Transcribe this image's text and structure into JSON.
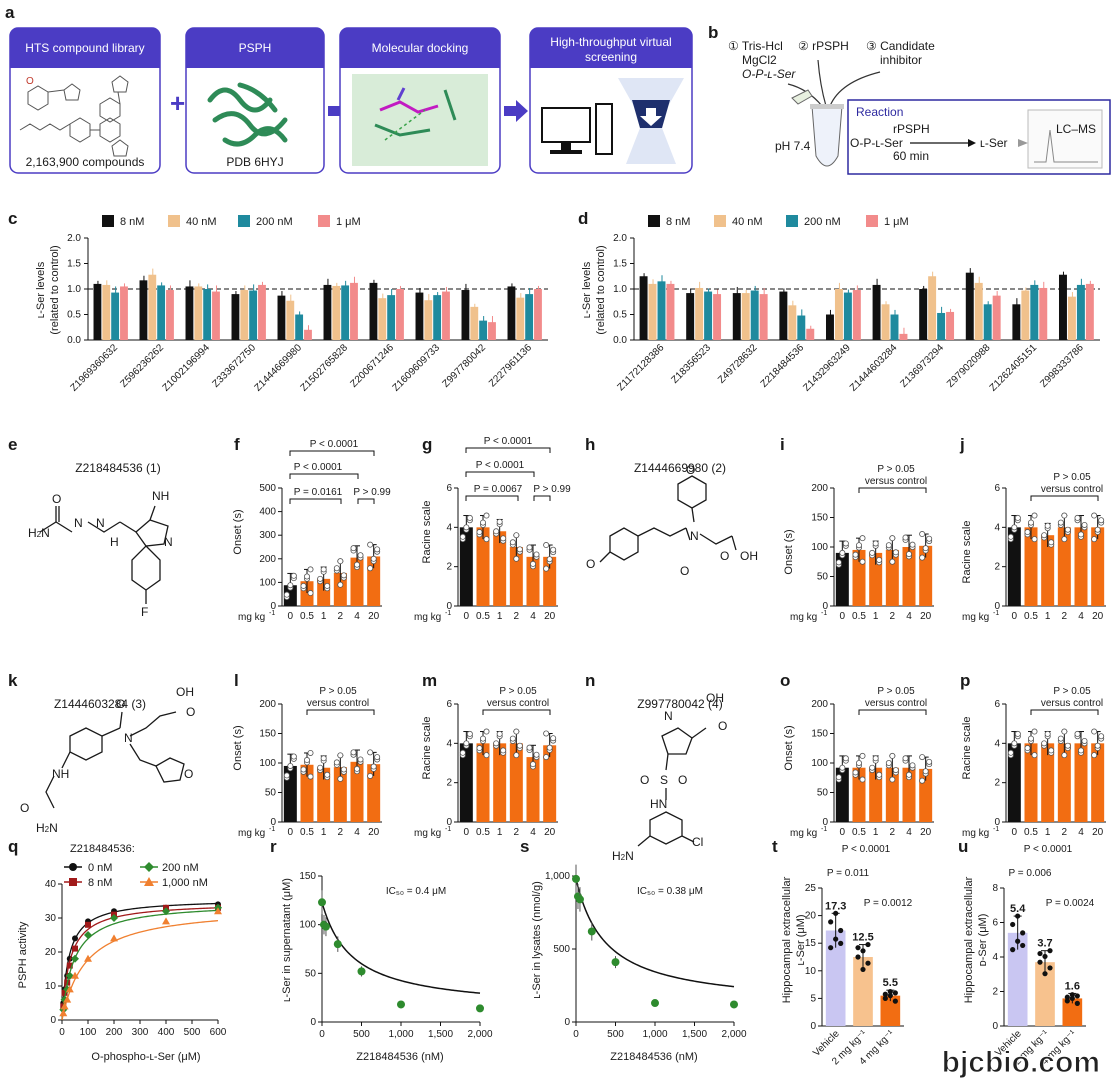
{
  "panel_letters": {
    "a": "a",
    "b": "b",
    "c": "c",
    "d": "d",
    "e": "e",
    "f": "f",
    "g": "g",
    "h": "h",
    "i": "i",
    "j": "j",
    "k": "k",
    "l": "l",
    "m": "m",
    "n": "n",
    "o": "o",
    "p": "p",
    "q": "q",
    "r": "r",
    "s": "s",
    "t": "t",
    "u": "u"
  },
  "panel_a": {
    "box1_title": "HTS compound library",
    "box1_caption": "2,163,900 compounds",
    "box2_title": "PSPH",
    "box2_caption": "PDB 6HYJ",
    "box3_title": "Molecular docking",
    "box4_title_1": "High-throughput virtual",
    "box4_title_2": "screening",
    "colors": {
      "header": "#4b3cc4",
      "arrow": "#4b3cc4",
      "protein": "#2e8b57"
    }
  },
  "panel_b": {
    "step1_1": "① Tris-Hcl",
    "step1_2": "MgCl2",
    "step1_3": "O-P-ʟ-Ser",
    "step2": "② rPSPH",
    "step3_1": "③ Candidate",
    "step3_2": "inhibitor",
    "ph": "pH 7.4",
    "reaction_title": "Reaction",
    "substrate": "O-P-ʟ-Ser",
    "enzyme": "rPSPH",
    "time": "60 min",
    "product": "ʟ-Ser",
    "lcms": "LC–MS"
  },
  "legend_cd": [
    "8 nM",
    "40 nM",
    "200 nM",
    "1 μM"
  ],
  "series_colors": [
    "#111111",
    "#f0c18c",
    "#1f8a9e",
    "#f28b8b"
  ],
  "ylabel_cd_1": "ʟ-Ser levels",
  "ylabel_cd_2": "(related to control)",
  "compound_labels": {
    "e": "Z218484536 (1)",
    "h": "Z1444669980 (2)",
    "k": "Z1444603284 (3)",
    "n": "Z997780042 (4)"
  },
  "axis_labels": {
    "onset": "Onset (s)",
    "racine": "Racine scale",
    "mgkg": "mg kg",
    "mgkg_sup": "-1",
    "psph": "PSPH activity",
    "ophospho": "O-phospho-ʟ-Ser (μM)",
    "ser_supernatant": "ʟ-Ser in supernatant (μM)",
    "ser_lysates": "ʟ-Ser in lysates (nmol/g)",
    "z218": "Z218484536 (nM)",
    "t_y1": "Hippocampal extracellular",
    "t_y2": "ʟ-Ser (μM)",
    "u_y1": "Hippocampal extracellular",
    "u_y2": "ᴅ-Ser (μM)"
  },
  "stats": {
    "f1": "P < 0.0001",
    "f2": "P < 0.0001",
    "f3": "P = 0.0161",
    "f4": "P > 0.99",
    "g1": "P < 0.0001",
    "g2": "P < 0.0001",
    "g3": "P = 0.0067",
    "g4": "P > 0.99",
    "ns1": "P > 0.05",
    "ns2": "versus control",
    "t1": "P < 0.0001",
    "t2": "P = 0.011",
    "t3": "P = 0.0012",
    "u1": "P < 0.0001",
    "u2": "P = 0.006",
    "u3": "P = 0.0024"
  },
  "ic50_r": "IC₅₀ = 0.4 μM",
  "ic50_s": "IC₅₀ = 0.38 μM",
  "q_legend": {
    "title": "Z218484536:",
    "s0": "0 nM",
    "s8": "8 nM",
    "s200": "200 nM",
    "s1000": "1,000 nM"
  },
  "watermark": "bjcbio.com",
  "chart_data": [
    {
      "id": "c",
      "type": "bar",
      "ylim": [
        0,
        2.0
      ],
      "yticks": [
        0,
        0.5,
        1.0,
        1.5,
        2.0
      ],
      "categories": [
        "Z1969360632",
        "Z596236262",
        "Z1002196994",
        "Z333672750",
        "Z1444669980",
        "Z1502765828",
        "Z200671246",
        "Z1609609733",
        "Z997780042",
        "Z227961136"
      ],
      "series": [
        {
          "name": "8 nM",
          "values": [
            1.1,
            1.17,
            1.05,
            0.9,
            0.87,
            1.08,
            1.12,
            0.93,
            0.98,
            1.05
          ]
        },
        {
          "name": "40 nM",
          "values": [
            1.08,
            1.28,
            1.05,
            0.98,
            0.77,
            1.06,
            0.82,
            0.78,
            0.65,
            0.83
          ]
        },
        {
          "name": "200 nM",
          "values": [
            0.93,
            1.07,
            1.0,
            0.97,
            0.5,
            1.07,
            0.88,
            0.88,
            0.38,
            0.9
          ]
        },
        {
          "name": "1 μM",
          "values": [
            1.05,
            0.98,
            0.95,
            1.08,
            0.2,
            1.12,
            1.0,
            0.95,
            0.35,
            1.0
          ]
        }
      ]
    },
    {
      "id": "d",
      "type": "bar",
      "ylim": [
        0,
        2.0
      ],
      "yticks": [
        0,
        0.5,
        1.0,
        1.5,
        2.0
      ],
      "categories": [
        "Z1172128386",
        "Z18356523",
        "Z49728632",
        "Z218484536",
        "Z1432963249",
        "Z1444603284",
        "Z136973294",
        "Z979020988",
        "Z1262405151",
        "Z998333786"
      ],
      "series": [
        {
          "name": "8 nM",
          "values": [
            1.25,
            0.92,
            0.92,
            0.95,
            0.5,
            1.08,
            1.0,
            1.32,
            0.7,
            1.28
          ]
        },
        {
          "name": "40 nM",
          "values": [
            1.1,
            1.02,
            0.92,
            0.68,
            1.0,
            0.7,
            1.25,
            1.12,
            0.97,
            0.85
          ]
        },
        {
          "name": "200 nM",
          "values": [
            1.15,
            0.95,
            0.97,
            0.48,
            0.93,
            0.5,
            0.53,
            0.7,
            1.08,
            1.08
          ]
        },
        {
          "name": "1 μM",
          "values": [
            1.1,
            0.9,
            0.9,
            0.22,
            0.98,
            0.12,
            0.55,
            0.87,
            1.02,
            1.1
          ]
        }
      ]
    },
    {
      "id": "f",
      "type": "bar",
      "categories": [
        "0",
        "0.5",
        "1",
        "2",
        "4",
        "20"
      ],
      "values": [
        88,
        105,
        115,
        140,
        205,
        210
      ],
      "ylim": [
        0,
        500
      ],
      "yticks": [
        0,
        100,
        200,
        300,
        400,
        500
      ]
    },
    {
      "id": "g",
      "type": "bar",
      "categories": [
        "0",
        "0.5",
        "1",
        "2",
        "4",
        "20"
      ],
      "values": [
        4.0,
        4.0,
        3.8,
        3.0,
        2.5,
        2.5
      ],
      "ylim": [
        0,
        6
      ],
      "yticks": [
        0,
        2,
        4,
        6
      ]
    },
    {
      "id": "i",
      "type": "bar",
      "categories": [
        "0",
        "0.5",
        "1",
        "2",
        "4",
        "20"
      ],
      "values": [
        90,
        95,
        90,
        95,
        100,
        102
      ],
      "ylim": [
        0,
        200
      ],
      "yticks": [
        0,
        50,
        100,
        150,
        200
      ]
    },
    {
      "id": "j",
      "type": "bar",
      "categories": [
        "0",
        "0.5",
        "1",
        "2",
        "4",
        "20"
      ],
      "values": [
        4.0,
        4.0,
        3.6,
        4.0,
        4.0,
        4.0
      ],
      "ylim": [
        0,
        6
      ],
      "yticks": [
        0,
        2,
        4,
        6
      ]
    },
    {
      "id": "l",
      "type": "bar",
      "categories": [
        "0",
        "0.5",
        "1",
        "2",
        "4",
        "20"
      ],
      "values": [
        95,
        97,
        92,
        93,
        102,
        98
      ],
      "ylim": [
        0,
        200
      ],
      "yticks": [
        0,
        50,
        100,
        150,
        200
      ]
    },
    {
      "id": "m",
      "type": "bar",
      "categories": [
        "0",
        "0.5",
        "1",
        "2",
        "4",
        "20"
      ],
      "values": [
        4.0,
        4.0,
        4.0,
        4.0,
        3.3,
        3.9
      ],
      "ylim": [
        0,
        6
      ],
      "yticks": [
        0,
        2,
        4,
        6
      ]
    },
    {
      "id": "o",
      "type": "bar",
      "categories": [
        "0",
        "0.5",
        "1",
        "2",
        "4",
        "20"
      ],
      "values": [
        92,
        92,
        92,
        92,
        92,
        90
      ],
      "ylim": [
        0,
        200
      ],
      "yticks": [
        0,
        50,
        100,
        150,
        200
      ]
    },
    {
      "id": "p",
      "type": "bar",
      "categories": [
        "0",
        "0.5",
        "1",
        "2",
        "4",
        "20"
      ],
      "values": [
        4.0,
        4.0,
        4.0,
        4.0,
        4.0,
        4.0
      ],
      "ylim": [
        0,
        6
      ],
      "yticks": [
        0,
        2,
        4,
        6
      ]
    },
    {
      "id": "q",
      "type": "line",
      "xlim": [
        0,
        600
      ],
      "ylim": [
        0,
        40
      ],
      "xticks": [
        0,
        100,
        200,
        300,
        400,
        500,
        600
      ],
      "yticks": [
        0,
        10,
        20,
        30,
        40
      ],
      "x": [
        5,
        10,
        20,
        30,
        50,
        100,
        200,
        400,
        600
      ],
      "series": [
        {
          "name": "0 nM",
          "values": [
            5,
            9,
            13,
            18,
            24,
            29,
            32,
            33,
            34
          ]
        },
        {
          "name": "8 nM",
          "values": [
            4,
            8,
            11,
            16,
            21,
            28,
            31,
            33,
            33
          ]
        },
        {
          "name": "200 nM",
          "values": [
            3,
            6,
            9,
            13,
            18,
            25,
            30,
            32,
            33
          ]
        },
        {
          "name": "1,000 nM",
          "values": [
            2,
            4,
            6,
            9,
            13,
            18,
            24,
            29,
            32
          ]
        }
      ]
    },
    {
      "id": "r",
      "type": "scatter",
      "xlim": [
        0,
        2000
      ],
      "ylim": [
        0,
        150
      ],
      "xticks": [
        0,
        500,
        1000,
        1500,
        2000
      ],
      "yticks": [
        0,
        50,
        100,
        150
      ],
      "x": [
        0,
        25,
        50,
        200,
        500,
        1000,
        2000
      ],
      "y": [
        123,
        100,
        98,
        80,
        52,
        18,
        14
      ]
    },
    {
      "id": "s",
      "type": "scatter",
      "xlim": [
        0,
        2000
      ],
      "ylim": [
        0,
        1000
      ],
      "xticks": [
        0,
        500,
        1000,
        1500,
        2000
      ],
      "yticks": [
        0,
        500,
        1000
      ],
      "x": [
        0,
        25,
        50,
        200,
        500,
        1000,
        2000
      ],
      "y": [
        980,
        860,
        840,
        620,
        410,
        130,
        120
      ]
    },
    {
      "id": "t",
      "type": "bar",
      "categories": [
        "Vehicle",
        "2 mg kg⁻¹",
        "4 mg kg⁻¹"
      ],
      "values": [
        17.3,
        12.5,
        5.5
      ],
      "data_labels": [
        "17.3",
        "12.5",
        "5.5"
      ],
      "ylim": [
        0,
        25
      ],
      "yticks": [
        0,
        5,
        10,
        15,
        20,
        25
      ]
    },
    {
      "id": "u",
      "type": "bar",
      "categories": [
        "Vehicle",
        "2 mg kg⁻¹",
        "4 mg kg⁻¹"
      ],
      "values": [
        5.4,
        3.7,
        1.6
      ],
      "data_labels": [
        "5.4",
        "3.7",
        "1.6"
      ],
      "ylim": [
        0,
        8
      ],
      "yticks": [
        0,
        2,
        4,
        6,
        8
      ]
    }
  ]
}
